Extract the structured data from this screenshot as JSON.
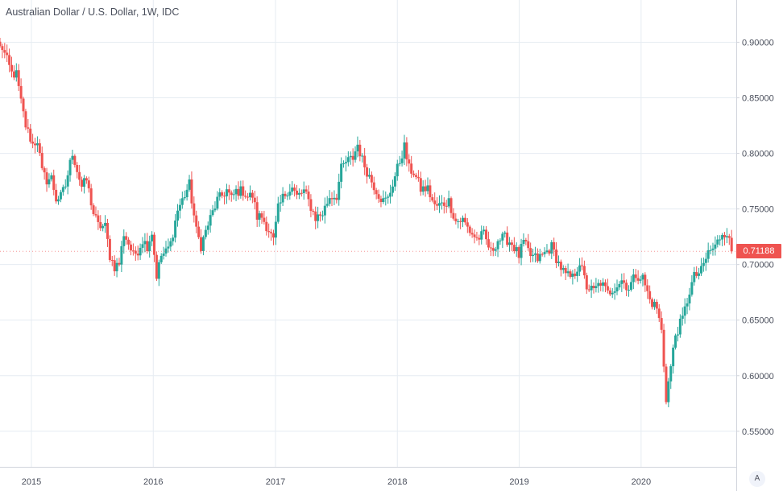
{
  "colors": {
    "up": "#26a69a",
    "down": "#ef5350",
    "grid": "#e6ecf2",
    "axis_line": "#d1d4dc",
    "text": "#4a4f5c",
    "badge_bg": "#ef5350"
  },
  "chart_data": {
    "type": "candlestick",
    "title": "Australian Dollar / U.S. Dollar, 1W, IDC",
    "x_ticks": [
      "2015",
      "2016",
      "2017",
      "2018",
      "2019",
      "2020"
    ],
    "y_ticks": [
      "0.90000",
      "0.85000",
      "0.80000",
      "0.75000",
      "0.70000",
      "0.65000",
      "0.60000",
      "0.55000"
    ],
    "ylim": [
      0.518,
      0.938
    ],
    "xlim": [
      "2014-09-29",
      "2020-10-12"
    ],
    "grid": true,
    "last_price": "0.71188",
    "price_axis_position": "right",
    "series": [
      {
        "name": "",
        "points": [
          [
            "2014-10-06",
            0.895
          ],
          [
            "2014-11-03",
            0.872
          ],
          [
            "2014-11-17",
            0.871
          ],
          [
            "2014-12-01",
            0.846
          ],
          [
            "2014-12-15",
            0.825
          ],
          [
            "2015-01-05",
            0.808
          ],
          [
            "2015-01-19",
            0.812
          ],
          [
            "2015-02-02",
            0.783
          ],
          [
            "2015-02-16",
            0.776
          ],
          [
            "2015-03-02",
            0.778
          ],
          [
            "2015-03-16",
            0.759
          ],
          [
            "2015-03-30",
            0.761
          ],
          [
            "2015-04-13",
            0.771
          ],
          [
            "2015-05-04",
            0.801
          ],
          [
            "2015-05-18",
            0.785
          ],
          [
            "2015-06-01",
            0.77
          ],
          [
            "2015-06-15",
            0.776
          ],
          [
            "2015-07-06",
            0.746
          ],
          [
            "2015-07-20",
            0.735
          ],
          [
            "2015-08-10",
            0.734
          ],
          [
            "2015-08-24",
            0.708
          ],
          [
            "2015-09-07",
            0.698
          ],
          [
            "2015-09-21",
            0.701
          ],
          [
            "2015-10-05",
            0.728
          ],
          [
            "2015-10-19",
            0.719
          ],
          [
            "2015-11-02",
            0.708
          ],
          [
            "2015-11-16",
            0.713
          ],
          [
            "2015-11-30",
            0.722
          ],
          [
            "2015-12-14",
            0.717
          ],
          [
            "2015-12-28",
            0.729
          ],
          [
            "2016-01-11",
            0.69
          ],
          [
            "2016-01-25",
            0.708
          ],
          [
            "2016-02-08",
            0.711
          ],
          [
            "2016-02-22",
            0.719
          ],
          [
            "2016-03-14",
            0.749
          ],
          [
            "2016-03-28",
            0.758
          ],
          [
            "2016-04-18",
            0.772
          ],
          [
            "2016-05-09",
            0.73
          ],
          [
            "2016-05-23",
            0.717
          ],
          [
            "2016-06-13",
            0.736
          ],
          [
            "2016-06-27",
            0.747
          ],
          [
            "2016-07-11",
            0.758
          ],
          [
            "2016-07-25",
            0.762
          ],
          [
            "2016-08-08",
            0.767
          ],
          [
            "2016-08-22",
            0.759
          ],
          [
            "2016-09-05",
            0.766
          ],
          [
            "2016-09-26",
            0.766
          ],
          [
            "2016-10-10",
            0.761
          ],
          [
            "2016-10-24",
            0.762
          ],
          [
            "2016-11-07",
            0.743
          ],
          [
            "2016-11-21",
            0.743
          ],
          [
            "2016-12-12",
            0.731
          ],
          [
            "2016-12-26",
            0.721
          ],
          [
            "2017-01-09",
            0.75
          ],
          [
            "2017-01-23",
            0.76
          ],
          [
            "2017-02-06",
            0.767
          ],
          [
            "2017-02-20",
            0.769
          ],
          [
            "2017-03-06",
            0.761
          ],
          [
            "2017-03-27",
            0.766
          ],
          [
            "2017-04-10",
            0.757
          ],
          [
            "2017-05-01",
            0.742
          ],
          [
            "2017-05-22",
            0.746
          ],
          [
            "2017-06-12",
            0.761
          ],
          [
            "2017-07-03",
            0.762
          ],
          [
            "2017-07-17",
            0.786
          ],
          [
            "2017-07-31",
            0.792
          ],
          [
            "2017-08-21",
            0.796
          ],
          [
            "2017-09-04",
            0.808
          ],
          [
            "2017-09-18",
            0.794
          ],
          [
            "2017-10-02",
            0.784
          ],
          [
            "2017-10-16",
            0.775
          ],
          [
            "2017-11-06",
            0.763
          ],
          [
            "2017-11-20",
            0.757
          ],
          [
            "2017-12-04",
            0.759
          ],
          [
            "2017-12-18",
            0.773
          ],
          [
            "2018-01-08",
            0.793
          ],
          [
            "2018-01-22",
            0.806
          ],
          [
            "2018-02-05",
            0.786
          ],
          [
            "2018-02-19",
            0.783
          ],
          [
            "2018-03-12",
            0.768
          ],
          [
            "2018-04-02",
            0.768
          ],
          [
            "2018-04-23",
            0.752
          ],
          [
            "2018-05-14",
            0.754
          ],
          [
            "2018-06-04",
            0.757
          ],
          [
            "2018-06-25",
            0.739
          ],
          [
            "2018-07-16",
            0.74
          ],
          [
            "2018-08-06",
            0.73
          ],
          [
            "2018-08-27",
            0.723
          ],
          [
            "2018-09-17",
            0.727
          ],
          [
            "2018-10-08",
            0.711
          ],
          [
            "2018-10-29",
            0.722
          ],
          [
            "2018-11-19",
            0.724
          ],
          [
            "2018-12-10",
            0.719
          ],
          [
            "2018-12-31",
            0.708
          ],
          [
            "2019-01-14",
            0.72
          ],
          [
            "2019-02-04",
            0.708
          ],
          [
            "2019-02-25",
            0.705
          ],
          [
            "2019-03-18",
            0.71
          ],
          [
            "2019-04-08",
            0.716
          ],
          [
            "2019-04-29",
            0.701
          ],
          [
            "2019-05-20",
            0.69
          ],
          [
            "2019-06-10",
            0.688
          ],
          [
            "2019-07-01",
            0.702
          ],
          [
            "2019-07-22",
            0.68
          ],
          [
            "2019-08-12",
            0.676
          ],
          [
            "2019-09-02",
            0.684
          ],
          [
            "2019-09-23",
            0.674
          ],
          [
            "2019-10-14",
            0.68
          ],
          [
            "2019-11-04",
            0.686
          ],
          [
            "2019-11-25",
            0.679
          ],
          [
            "2019-12-16",
            0.691
          ],
          [
            "2020-01-06",
            0.688
          ],
          [
            "2020-01-27",
            0.668
          ],
          [
            "2020-02-17",
            0.661
          ],
          [
            "2020-03-02",
            0.64
          ],
          [
            "2020-03-16",
            0.58
          ],
          [
            "2020-03-30",
            0.608
          ],
          [
            "2020-04-13",
            0.637
          ],
          [
            "2020-05-04",
            0.651
          ],
          [
            "2020-05-25",
            0.676
          ],
          [
            "2020-06-08",
            0.689
          ],
          [
            "2020-06-29",
            0.694
          ],
          [
            "2020-07-20",
            0.711
          ],
          [
            "2020-08-10",
            0.716
          ],
          [
            "2020-08-31",
            0.729
          ],
          [
            "2020-09-14",
            0.729
          ],
          [
            "2020-09-28",
            0.712
          ]
        ]
      }
    ]
  },
  "ui": {
    "auto_scale_label": "A"
  }
}
